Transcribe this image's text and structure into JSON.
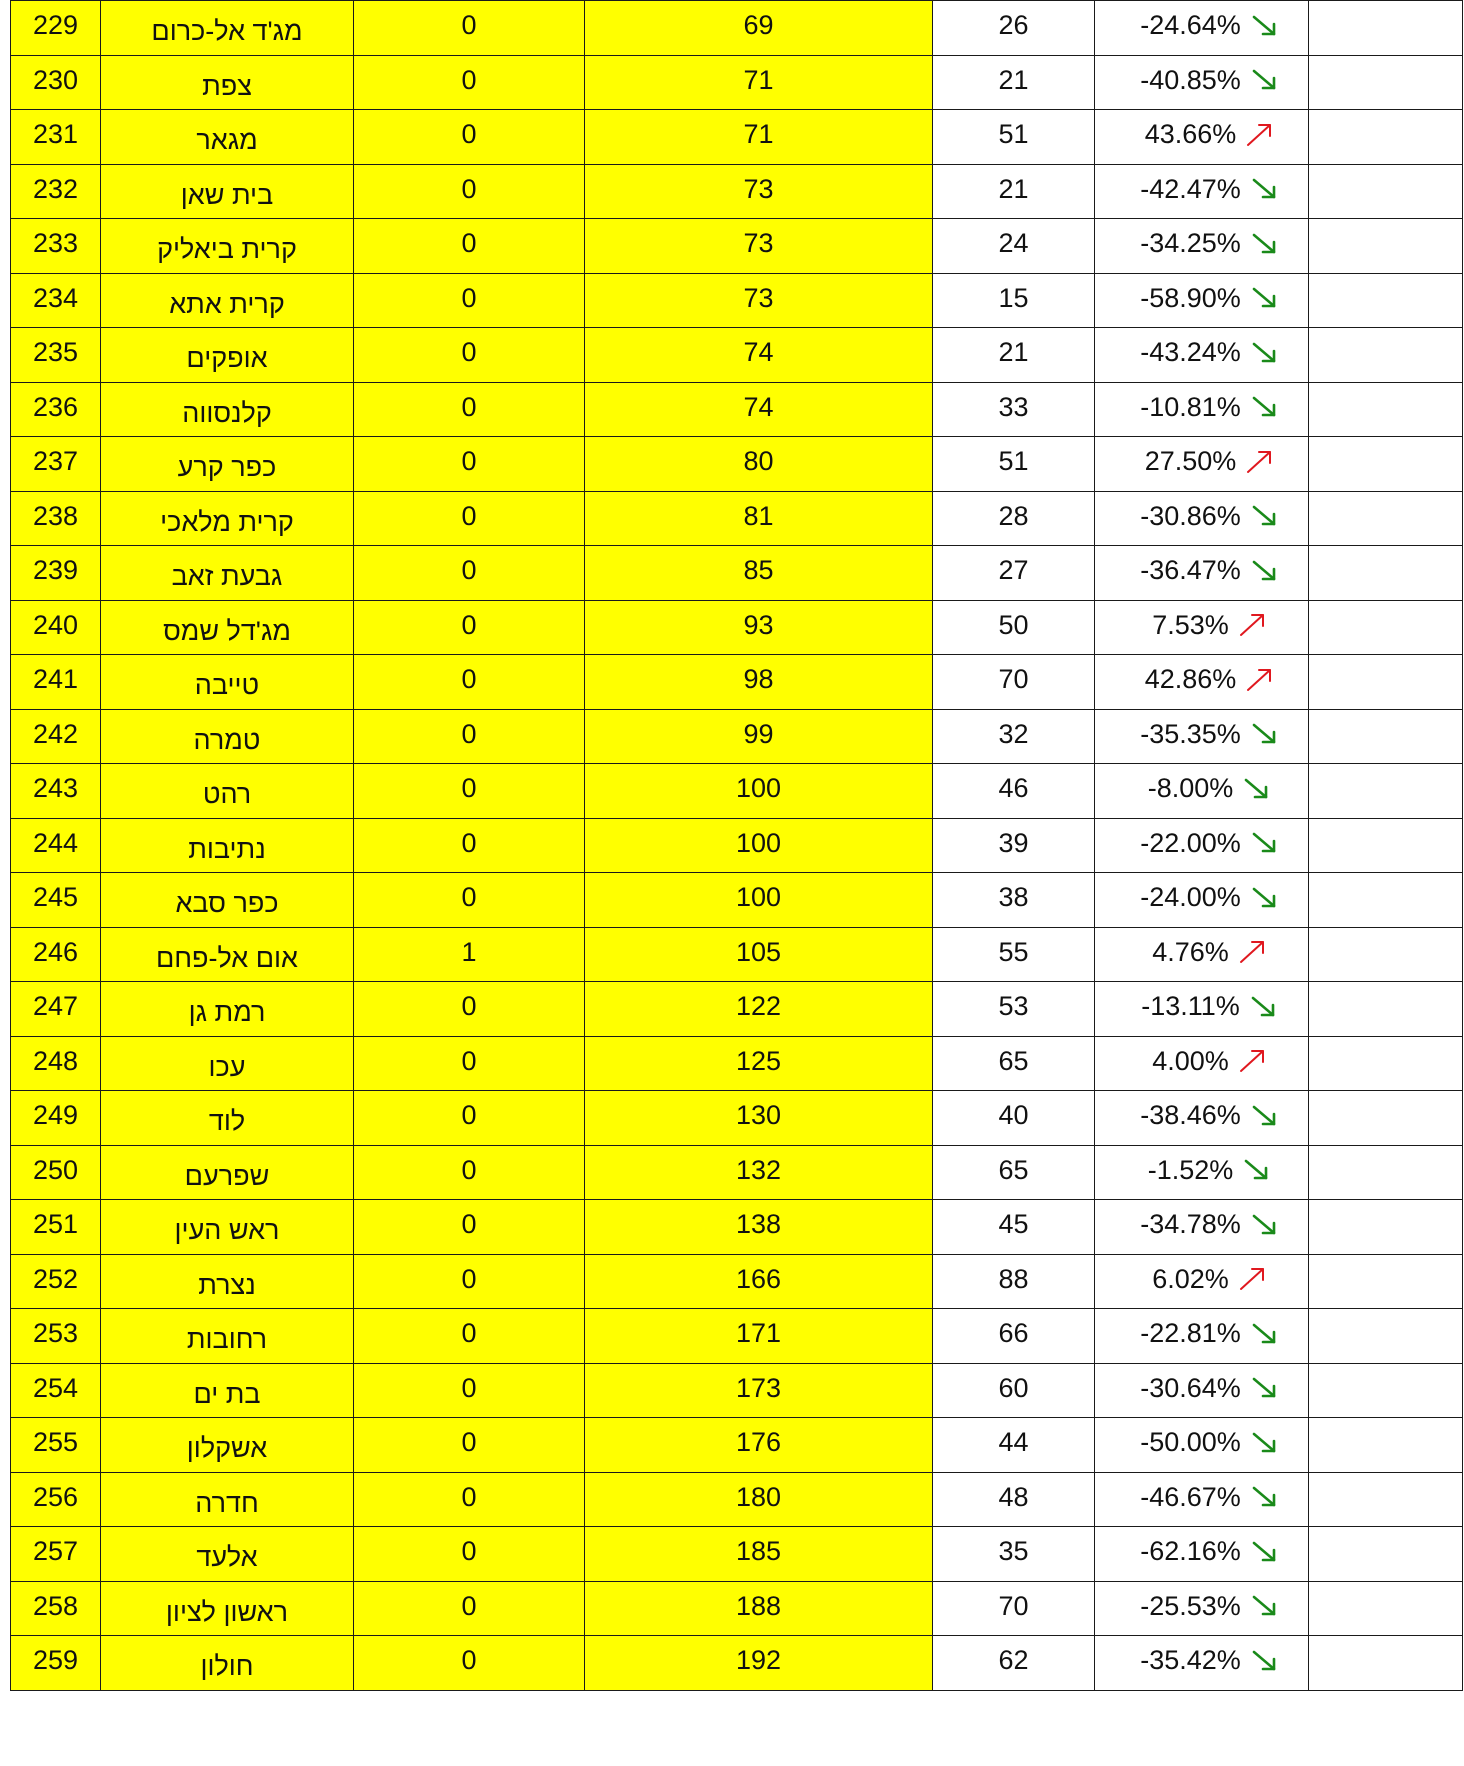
{
  "colors": {
    "highlight": "#ffff00",
    "down_arrow": "#1a8a1a",
    "up_arrow": "#e0181f",
    "border": "#1a1a1a"
  },
  "rows": [
    {
      "rank": "229",
      "city": "מג'ד אל-כרום",
      "c3": "0",
      "c4": "69",
      "c5": "26",
      "pct": "-24.64%",
      "trend": "down"
    },
    {
      "rank": "230",
      "city": "צפת",
      "c3": "0",
      "c4": "71",
      "c5": "21",
      "pct": "-40.85%",
      "trend": "down"
    },
    {
      "rank": "231",
      "city": "מגאר",
      "c3": "0",
      "c4": "71",
      "c5": "51",
      "pct": "43.66%",
      "trend": "up"
    },
    {
      "rank": "232",
      "city": "בית שאן",
      "c3": "0",
      "c4": "73",
      "c5": "21",
      "pct": "-42.47%",
      "trend": "down"
    },
    {
      "rank": "233",
      "city": "קרית ביאליק",
      "c3": "0",
      "c4": "73",
      "c5": "24",
      "pct": "-34.25%",
      "trend": "down"
    },
    {
      "rank": "234",
      "city": "קרית אתא",
      "c3": "0",
      "c4": "73",
      "c5": "15",
      "pct": "-58.90%",
      "trend": "down"
    },
    {
      "rank": "235",
      "city": "אופקים",
      "c3": "0",
      "c4": "74",
      "c5": "21",
      "pct": "-43.24%",
      "trend": "down"
    },
    {
      "rank": "236",
      "city": "קלנסווה",
      "c3": "0",
      "c4": "74",
      "c5": "33",
      "pct": "-10.81%",
      "trend": "down"
    },
    {
      "rank": "237",
      "city": "כפר קרע",
      "c3": "0",
      "c4": "80",
      "c5": "51",
      "pct": "27.50%",
      "trend": "up"
    },
    {
      "rank": "238",
      "city": "קרית מלאכי",
      "c3": "0",
      "c4": "81",
      "c5": "28",
      "pct": "-30.86%",
      "trend": "down"
    },
    {
      "rank": "239",
      "city": "גבעת זאב",
      "c3": "0",
      "c4": "85",
      "c5": "27",
      "pct": "-36.47%",
      "trend": "down"
    },
    {
      "rank": "240",
      "city": "מג'דל שמס",
      "c3": "0",
      "c4": "93",
      "c5": "50",
      "pct": "7.53%",
      "trend": "up"
    },
    {
      "rank": "241",
      "city": "טייבה",
      "c3": "0",
      "c4": "98",
      "c5": "70",
      "pct": "42.86%",
      "trend": "up"
    },
    {
      "rank": "242",
      "city": "טמרה",
      "c3": "0",
      "c4": "99",
      "c5": "32",
      "pct": "-35.35%",
      "trend": "down"
    },
    {
      "rank": "243",
      "city": "רהט",
      "c3": "0",
      "c4": "100",
      "c5": "46",
      "pct": "-8.00%",
      "trend": "down"
    },
    {
      "rank": "244",
      "city": "נתיבות",
      "c3": "0",
      "c4": "100",
      "c5": "39",
      "pct": "-22.00%",
      "trend": "down"
    },
    {
      "rank": "245",
      "city": "כפר סבא",
      "c3": "0",
      "c4": "100",
      "c5": "38",
      "pct": "-24.00%",
      "trend": "down"
    },
    {
      "rank": "246",
      "city": "אום אל-פחם",
      "c3": "1",
      "c4": "105",
      "c5": "55",
      "pct": "4.76%",
      "trend": "up"
    },
    {
      "rank": "247",
      "city": "רמת גן",
      "c3": "0",
      "c4": "122",
      "c5": "53",
      "pct": "-13.11%",
      "trend": "down"
    },
    {
      "rank": "248",
      "city": "עכו",
      "c3": "0",
      "c4": "125",
      "c5": "65",
      "pct": "4.00%",
      "trend": "up"
    },
    {
      "rank": "249",
      "city": "לוד",
      "c3": "0",
      "c4": "130",
      "c5": "40",
      "pct": "-38.46%",
      "trend": "down"
    },
    {
      "rank": "250",
      "city": "שפרעם",
      "c3": "0",
      "c4": "132",
      "c5": "65",
      "pct": "-1.52%",
      "trend": "down"
    },
    {
      "rank": "251",
      "city": "ראש העין",
      "c3": "0",
      "c4": "138",
      "c5": "45",
      "pct": "-34.78%",
      "trend": "down"
    },
    {
      "rank": "252",
      "city": "נצרת",
      "c3": "0",
      "c4": "166",
      "c5": "88",
      "pct": "6.02%",
      "trend": "up"
    },
    {
      "rank": "253",
      "city": "רחובות",
      "c3": "0",
      "c4": "171",
      "c5": "66",
      "pct": "-22.81%",
      "trend": "down"
    },
    {
      "rank": "254",
      "city": "בת ים",
      "c3": "0",
      "c4": "173",
      "c5": "60",
      "pct": "-30.64%",
      "trend": "down"
    },
    {
      "rank": "255",
      "city": "אשקלון",
      "c3": "0",
      "c4": "176",
      "c5": "44",
      "pct": "-50.00%",
      "trend": "down"
    },
    {
      "rank": "256",
      "city": "חדרה",
      "c3": "0",
      "c4": "180",
      "c5": "48",
      "pct": "-46.67%",
      "trend": "down"
    },
    {
      "rank": "257",
      "city": "אלעד",
      "c3": "0",
      "c4": "185",
      "c5": "35",
      "pct": "-62.16%",
      "trend": "down"
    },
    {
      "rank": "258",
      "city": "ראשון לציון",
      "c3": "0",
      "c4": "188",
      "c5": "70",
      "pct": "-25.53%",
      "trend": "down"
    },
    {
      "rank": "259",
      "city": "חולון",
      "c3": "0",
      "c4": "192",
      "c5": "62",
      "pct": "-35.42%",
      "trend": "down"
    }
  ]
}
